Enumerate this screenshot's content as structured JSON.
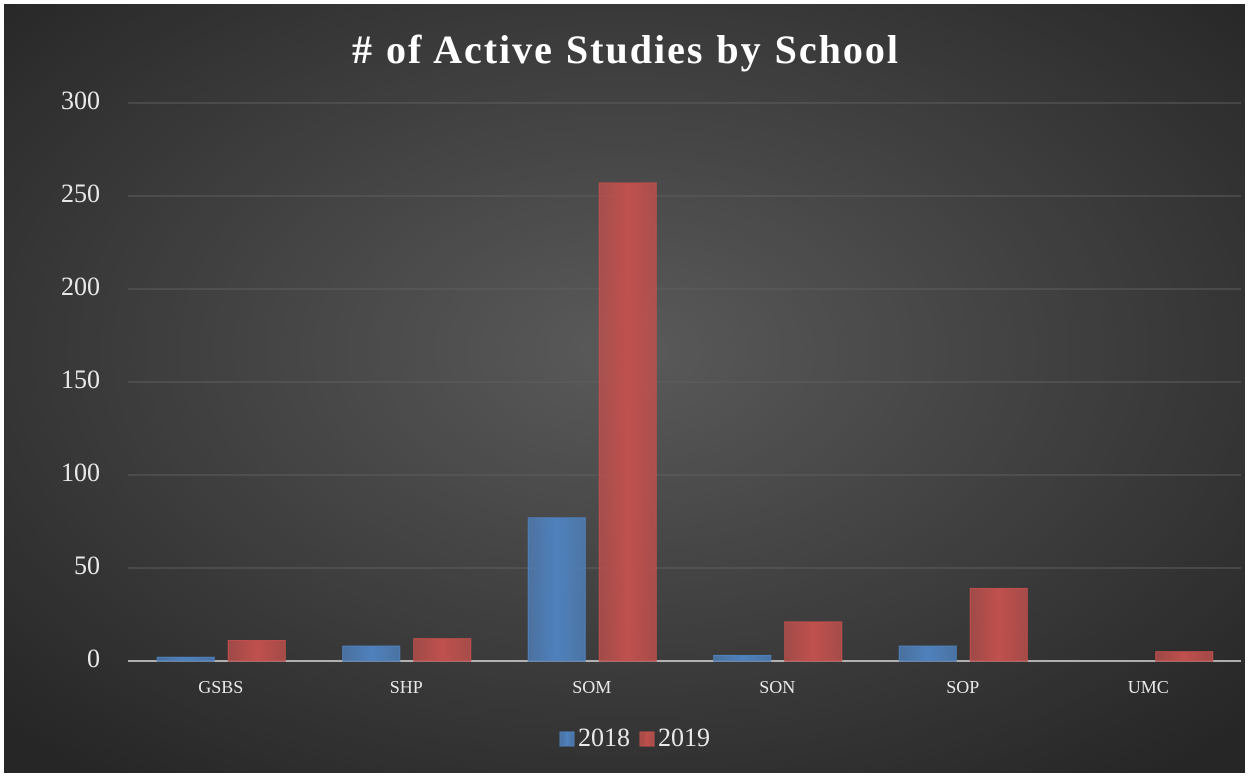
{
  "chart_data": {
    "type": "bar",
    "title": "# of Active Studies by School",
    "categories": [
      "GSBS",
      "SHP",
      "SOM",
      "SON",
      "SOP",
      "UMC"
    ],
    "series": [
      {
        "name": "2018",
        "color": "#4f81bd",
        "values": [
          2,
          8,
          77,
          3,
          8,
          0
        ]
      },
      {
        "name": "2019",
        "color": "#c0504d",
        "values": [
          11,
          12,
          257,
          21,
          39,
          5
        ]
      }
    ],
    "ylim": [
      0,
      300
    ],
    "yticks": [
      0,
      50,
      100,
      150,
      200,
      250,
      300
    ],
    "grid": true,
    "legend": "bottom"
  }
}
